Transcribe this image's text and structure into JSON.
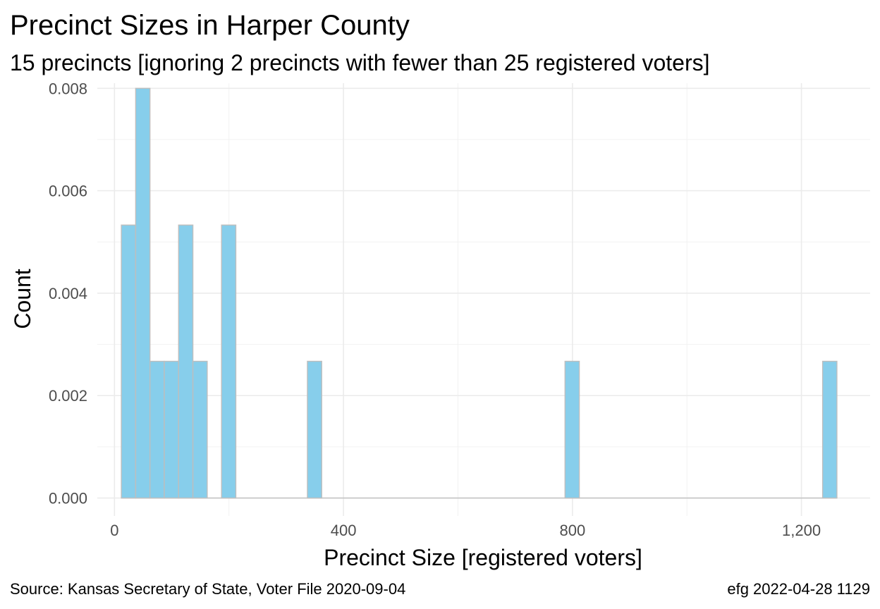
{
  "chart_data": {
    "type": "bar",
    "title": "Precinct Sizes in Harper County",
    "subtitle": "15 precincts [ignoring 2 precincts with fewer than 25 registered voters]",
    "xlabel": "Precinct Size [registered voters]",
    "ylabel": "Count",
    "caption_left": "Source:  Kansas Secretary of State, Voter File  2020-09-04",
    "caption_right": "efg 2022-04-28 1129",
    "xlim": [
      -30,
      1320
    ],
    "ylim": [
      -0.00035,
      0.0081
    ],
    "x_ticks": [
      0,
      400,
      800,
      1200
    ],
    "x_tick_labels": [
      "0",
      "400",
      "800",
      "1,200"
    ],
    "y_ticks": [
      0,
      0.002,
      0.004,
      0.006,
      0.008
    ],
    "y_tick_labels": [
      "0.000",
      "0.002",
      "0.004",
      "0.006",
      "0.008"
    ],
    "grid": true,
    "legend": "none",
    "fill_color": "#87CEEB",
    "border_color": "#BEBEBE",
    "bins": [
      {
        "x0": 12,
        "x1": 37,
        "value": 0.00533
      },
      {
        "x0": 37,
        "x1": 62,
        "value": 0.008
      },
      {
        "x0": 62,
        "x1": 87,
        "value": 0.00267
      },
      {
        "x0": 87,
        "x1": 112,
        "value": 0.00267
      },
      {
        "x0": 112,
        "x1": 137,
        "value": 0.00533
      },
      {
        "x0": 137,
        "x1": 162,
        "value": 0.00267
      },
      {
        "x0": 187,
        "x1": 212,
        "value": 0.00533
      },
      {
        "x0": 337,
        "x1": 362,
        "value": 0.00267
      },
      {
        "x0": 787,
        "x1": 812,
        "value": 0.00267
      },
      {
        "x0": 1237,
        "x1": 1262,
        "value": 0.00267
      }
    ]
  }
}
